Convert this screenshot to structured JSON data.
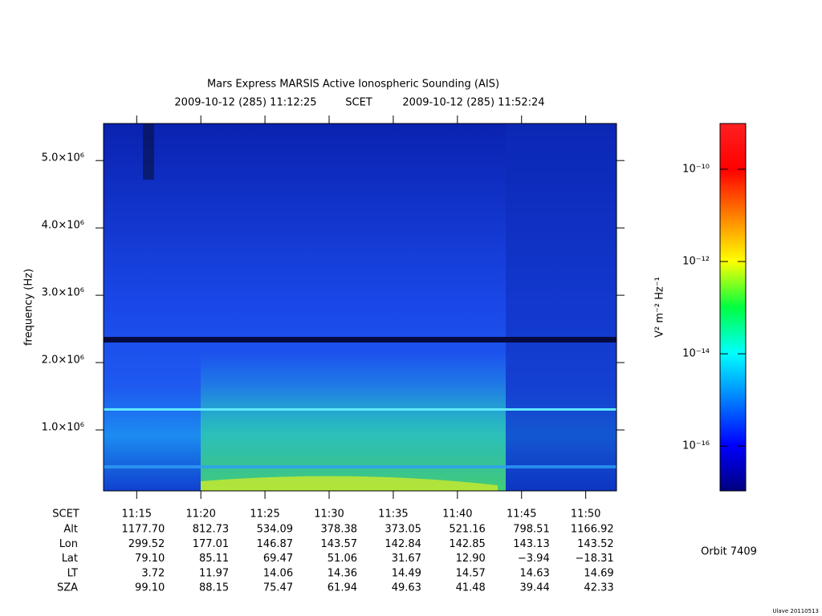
{
  "chart_data": {
    "type": "spectrogram",
    "title": "Mars Express MARSIS Active Ionospheric Sounding (AIS)",
    "time_start": "2009-10-12 (285) 11:12:25",
    "time_system": "SCET",
    "time_end": "2009-10-12 (285) 11:52:24",
    "y_label": "frequency (Hz)",
    "ylim": [
      95000,
      5550000
    ],
    "yticks": [
      {
        "value": 1000000,
        "label": "1.0×10⁶"
      },
      {
        "value": 2000000,
        "label": "2.0×10⁶"
      },
      {
        "value": 3000000,
        "label": "3.0×10⁶"
      },
      {
        "value": 4000000,
        "label": "4.0×10⁶"
      },
      {
        "value": 5000000,
        "label": "5.0×10⁶"
      }
    ],
    "xlim": [
      672.417,
      712.4
    ],
    "xticks": [
      {
        "value": 675,
        "label": "11:15"
      },
      {
        "value": 680,
        "label": "11:20"
      },
      {
        "value": 685,
        "label": "11:25"
      },
      {
        "value": 690,
        "label": "11:30"
      },
      {
        "value": 695,
        "label": "11:35"
      },
      {
        "value": 700,
        "label": "11:40"
      },
      {
        "value": 705,
        "label": "11:45"
      },
      {
        "value": 710,
        "label": "11:50"
      }
    ],
    "ephemeris": {
      "header": "SCET",
      "rows": [
        {
          "name": "Alt",
          "values": [
            "1177.70",
            "812.73",
            "534.09",
            "378.38",
            "373.05",
            "521.16",
            "798.51",
            "1166.92"
          ]
        },
        {
          "name": "Lon",
          "values": [
            "299.52",
            "177.01",
            "146.87",
            "143.57",
            "142.84",
            "142.85",
            "143.13",
            "143.52"
          ]
        },
        {
          "name": "Lat",
          "values": [
            "79.10",
            "85.11",
            "69.47",
            "51.06",
            "31.67",
            "12.90",
            "−3.94",
            "−18.31"
          ]
        },
        {
          "name": "LT",
          "values": [
            "3.72",
            "11.97",
            "14.06",
            "14.36",
            "14.49",
            "14.57",
            "14.63",
            "14.69"
          ]
        },
        {
          "name": "SZA",
          "values": [
            "99.10",
            "88.15",
            "75.47",
            "61.94",
            "49.63",
            "41.48",
            "39.44",
            "42.33"
          ]
        }
      ]
    },
    "colorbar_label": "V² m⁻² Hz⁻¹",
    "clim": [
      -16.97,
      -9.01
    ],
    "cticks": [
      {
        "value": -10,
        "label": "10⁻¹⁰"
      },
      {
        "value": -12,
        "label": "10⁻¹²"
      },
      {
        "value": -14,
        "label": "10⁻¹⁴"
      },
      {
        "value": -16,
        "label": "10⁻¹⁶"
      }
    ],
    "orbit": "Orbit 7409",
    "credit": "Ulave 20110513"
  }
}
